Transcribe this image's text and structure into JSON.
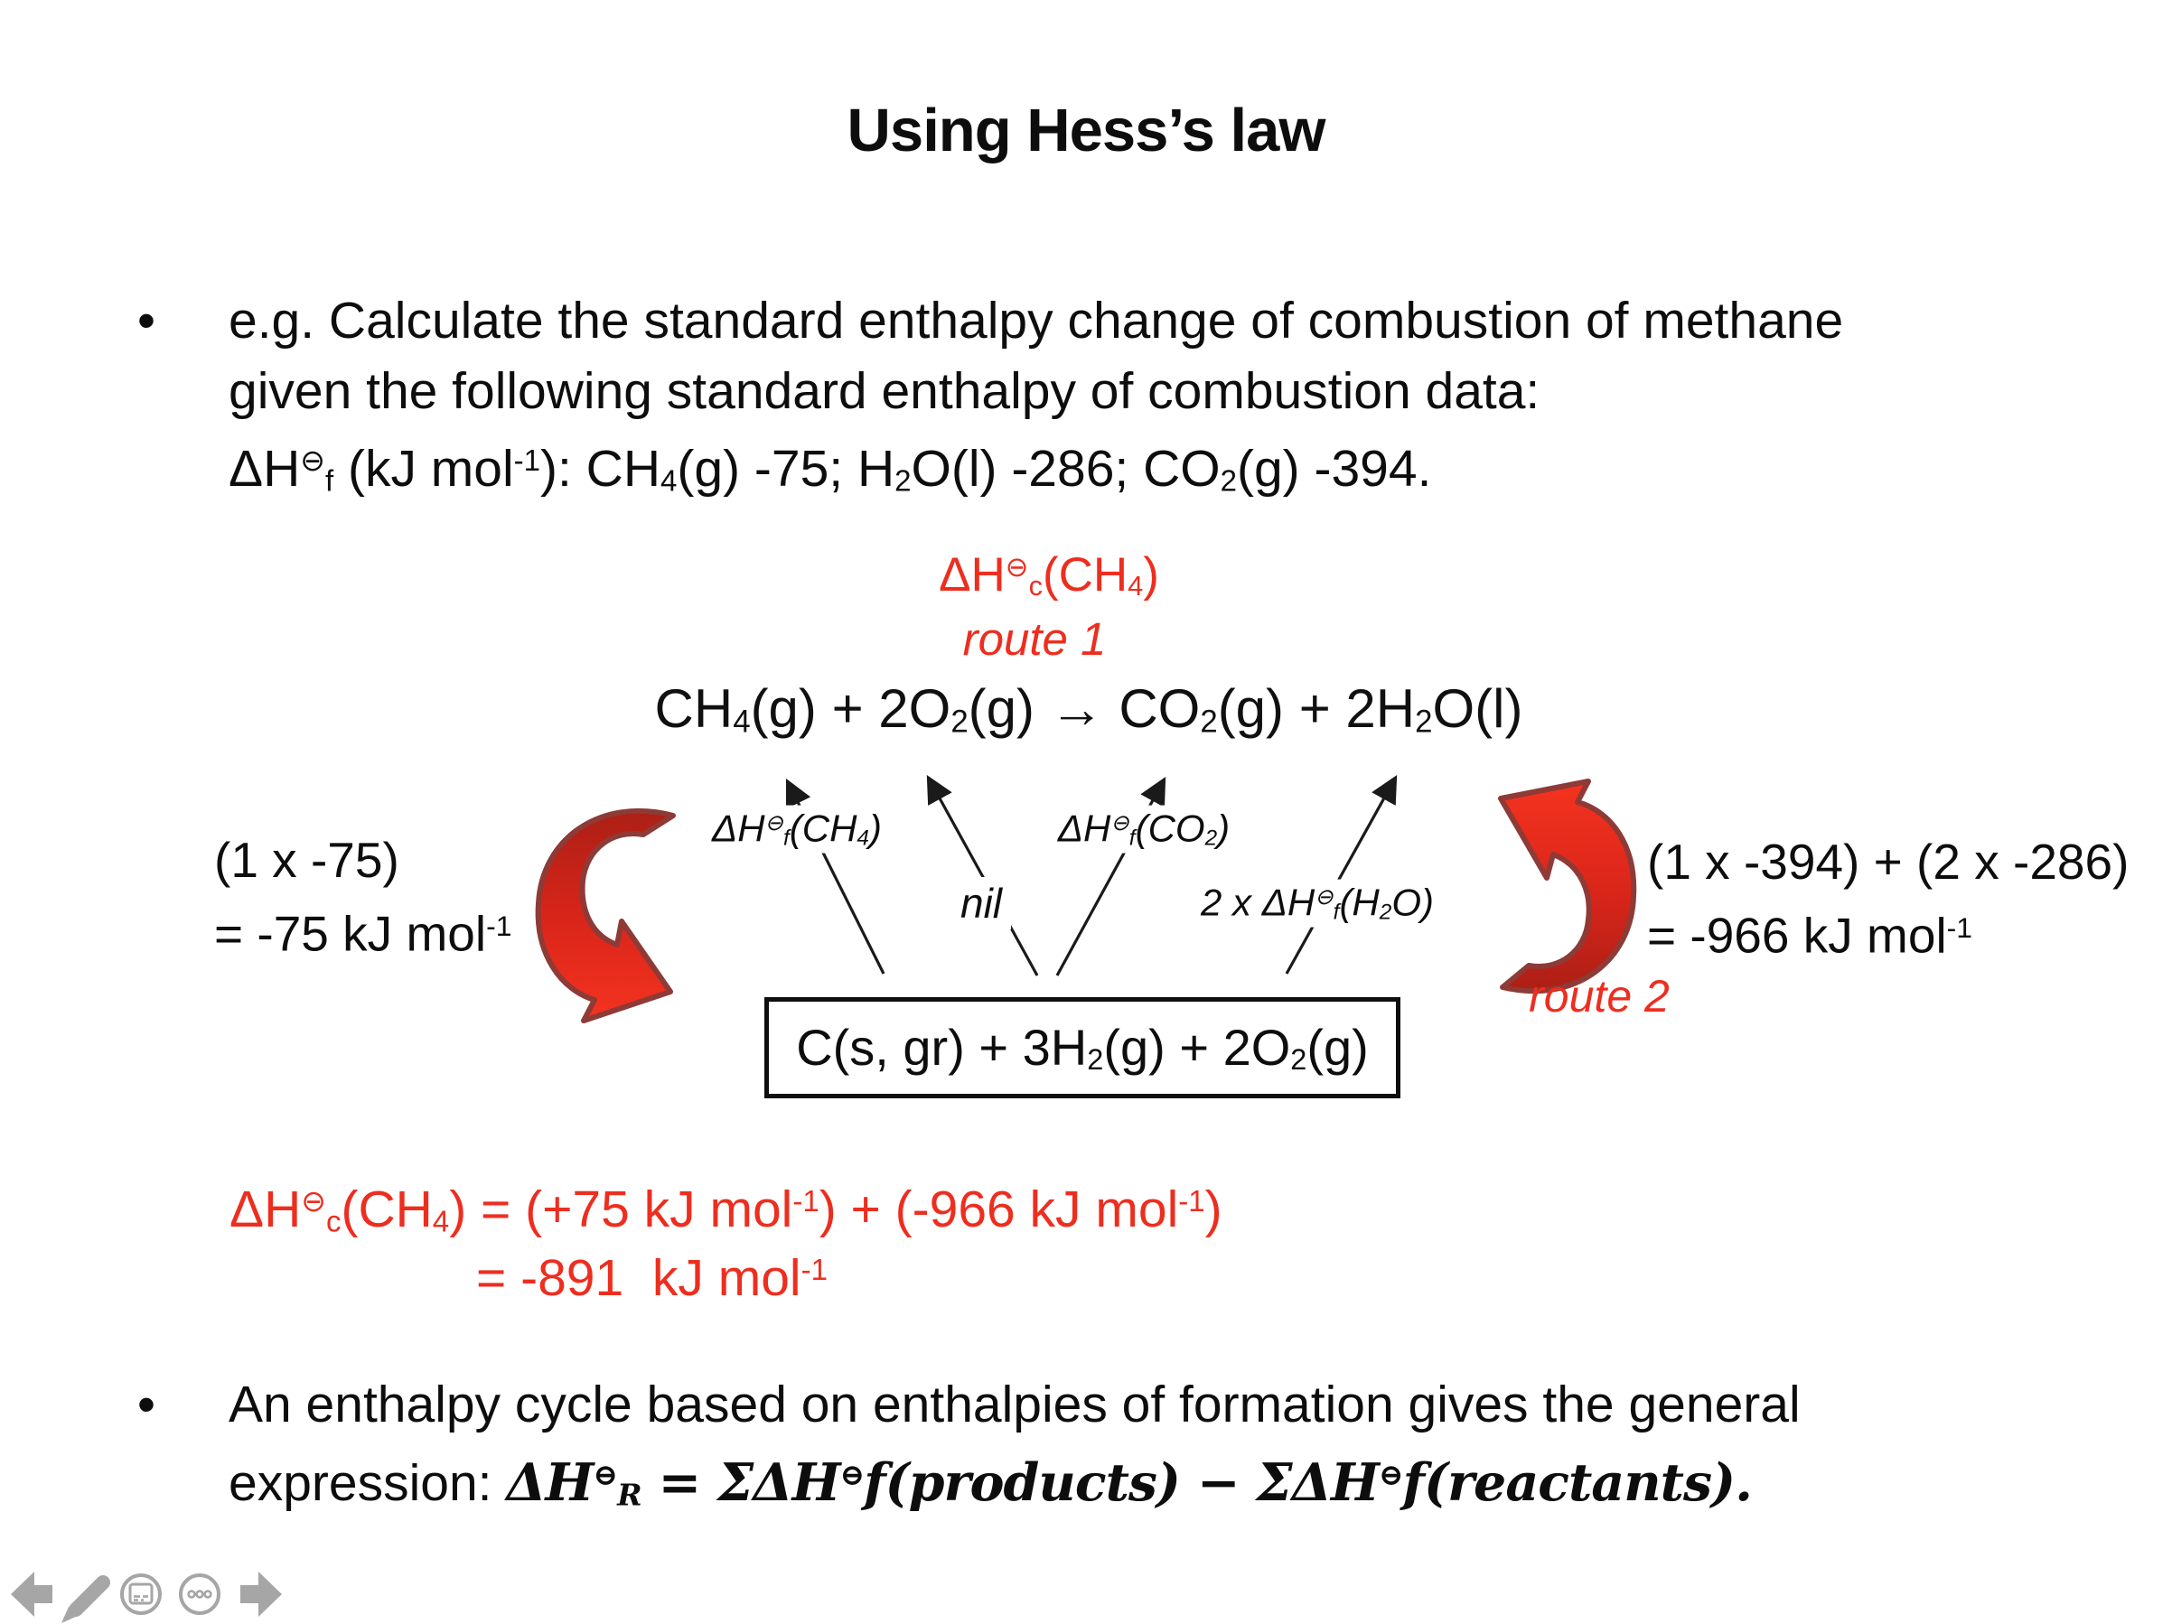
{
  "colors": {
    "red": "#ED2E1F",
    "text": "#0D0D0D",
    "line_black": "#1A1A1A",
    "arrow_red_dark": "#AC1F15",
    "arrow_red_mid": "#D8251A",
    "arrow_red_bright": "#F5331F",
    "arrow_stroke": "#8E3A36",
    "icon_gray": "#A6A6A6"
  },
  "title": "Using Hess’s law",
  "bullet1": {
    "marker": "•",
    "line1": "e.g. Calculate the standard enthalpy change of combustion of methane",
    "line2": "given the following standard enthalpy of combustion data:",
    "line3": [
      {
        "t": "ΔH"
      },
      {
        "t": "⊖",
        "s": "sup"
      },
      {
        "t": "f",
        "s": "sub"
      },
      {
        "t": " (kJ mol"
      },
      {
        "t": "-1",
        "s": "sup"
      },
      {
        "t": "): CH"
      },
      {
        "t": "4",
        "s": "sub"
      },
      {
        "t": "(g) -75; H"
      },
      {
        "t": "2",
        "s": "sub"
      },
      {
        "t": "O(l) -286; CO"
      },
      {
        "t": "2",
        "s": "sub"
      },
      {
        "t": "(g) -394."
      }
    ]
  },
  "cycle": {
    "top_label": [
      {
        "t": "ΔH"
      },
      {
        "t": "⊖",
        "s": "sup"
      },
      {
        "t": "c",
        "s": "sub"
      },
      {
        "t": "(CH"
      },
      {
        "t": "4",
        "s": "sub"
      },
      {
        "t": ")"
      }
    ],
    "route1": "route 1",
    "equation_top": [
      {
        "t": "CH"
      },
      {
        "t": "4",
        "s": "sub"
      },
      {
        "t": "(g) + 2O"
      },
      {
        "t": "2",
        "s": "sub"
      },
      {
        "t": "(g) → CO"
      },
      {
        "t": "2",
        "s": "sub"
      },
      {
        "t": "(g) + 2H"
      },
      {
        "t": "2",
        "s": "sub"
      },
      {
        "t": "O(l)"
      }
    ],
    "label_ch4": [
      {
        "t": "ΔH"
      },
      {
        "t": "⊖",
        "s": "sup"
      },
      {
        "t": "f",
        "s": "sub"
      },
      {
        "t": "(CH"
      },
      {
        "t": "4",
        "s": "sub"
      },
      {
        "t": ")"
      }
    ],
    "label_nil": [
      {
        "t": "nil"
      }
    ],
    "label_co2": [
      {
        "t": "ΔH"
      },
      {
        "t": "⊖",
        "s": "sup"
      },
      {
        "t": "f",
        "s": "sub"
      },
      {
        "t": "(CO"
      },
      {
        "t": "2",
        "s": "sub"
      },
      {
        "t": ")"
      }
    ],
    "label_h2o": [
      {
        "t": "2 x ΔH"
      },
      {
        "t": "⊖",
        "s": "sup"
      },
      {
        "t": "f",
        "s": "sub"
      },
      {
        "t": "(H"
      },
      {
        "t": "2",
        "s": "sub"
      },
      {
        "t": "O)"
      }
    ],
    "left_calc_line1": "(1 x -75)",
    "left_calc_line2": [
      {
        "t": "= -75 kJ mol"
      },
      {
        "t": "-1",
        "s": "sup"
      }
    ],
    "right_calc_line1": "(1 x -394) + (2 x -286)",
    "right_calc_line2": [
      {
        "t": "= -966 kJ mol"
      },
      {
        "t": "-1",
        "s": "sup"
      }
    ],
    "route2": "route 2",
    "equation_bottom": [
      {
        "t": "C(s, gr) + 3H"
      },
      {
        "t": "2",
        "s": "sub"
      },
      {
        "t": "(g) + 2O"
      },
      {
        "t": "2",
        "s": "sub"
      },
      {
        "t": "(g)"
      }
    ]
  },
  "result": {
    "line1": [
      {
        "t": "ΔH"
      },
      {
        "t": "⊖",
        "s": "sup"
      },
      {
        "t": "c",
        "s": "sub"
      },
      {
        "t": "(CH"
      },
      {
        "t": "4",
        "s": "sub"
      },
      {
        "t": ") = (+75 kJ mol"
      },
      {
        "t": "-1",
        "s": "sup"
      },
      {
        "t": ") + (-966 kJ mol"
      },
      {
        "t": "-1",
        "s": "sup"
      },
      {
        "t": ")"
      }
    ],
    "line2": [
      {
        "t": "= -891  kJ mol"
      },
      {
        "t": "-1",
        "s": "sup"
      }
    ]
  },
  "bullet2": {
    "marker": "•",
    "line1": "An enthalpy cycle based on enthalpies of formation gives the general",
    "line2": [
      {
        "t": "expression: "
      },
      {
        "t": "ΔH",
        "s": "math"
      },
      {
        "t": "⊖",
        "s": "math sup"
      },
      {
        "t": "R",
        "s": "math sub"
      },
      {
        "t": " = ",
        "s": "math"
      },
      {
        "t": "ΣΔH",
        "s": "math"
      },
      {
        "t": "⊖",
        "s": "math sup"
      },
      {
        "t": "f",
        "s": "math"
      },
      {
        "t": "(",
        "s": "math"
      },
      {
        "t": "products",
        "s": "math"
      },
      {
        "t": ")",
        "s": "math"
      },
      {
        "t": " − ",
        "s": "math"
      },
      {
        "t": "ΣΔH",
        "s": "math"
      },
      {
        "t": "⊖",
        "s": "math sup"
      },
      {
        "t": "f",
        "s": "math"
      },
      {
        "t": "(",
        "s": "math"
      },
      {
        "t": "reactants",
        "s": "math"
      },
      {
        "t": ").",
        "s": "math"
      }
    ]
  },
  "nav": {
    "icons": [
      {
        "name": "previous-slide-arrow-icon"
      },
      {
        "name": "pen-icon"
      },
      {
        "name": "slideshow-panel-icon"
      },
      {
        "name": "more-options-icon"
      },
      {
        "name": "next-slide-arrow-icon"
      }
    ]
  }
}
